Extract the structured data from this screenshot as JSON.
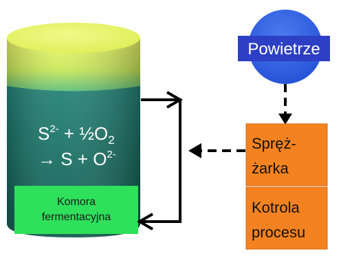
{
  "diagram": {
    "reactor": {
      "equation_line1_parts": [
        "S",
        "2-",
        " + ½O",
        "2"
      ],
      "equation_line2_parts": [
        "→ S + O",
        "2-"
      ],
      "chamber_label_line1": "Komora",
      "chamber_label_line2": "fermentacyjna"
    },
    "air_node": {
      "label": "Powietrze"
    },
    "compressor": {
      "label_line1": "Spręż-",
      "label_line2": "żarka"
    },
    "controller": {
      "label_line1": "Kotrola",
      "label_line2": "procesu"
    }
  },
  "colors": {
    "cylinder_top": "#e6f55a",
    "cylinder_body": "#1f8a7a",
    "chamber_box": "#2ee05a",
    "air_circle": "#2f5fe0",
    "air_label_bg": "#2d3fc4",
    "process_boxes": "#f58220",
    "arrows": "#000000"
  }
}
